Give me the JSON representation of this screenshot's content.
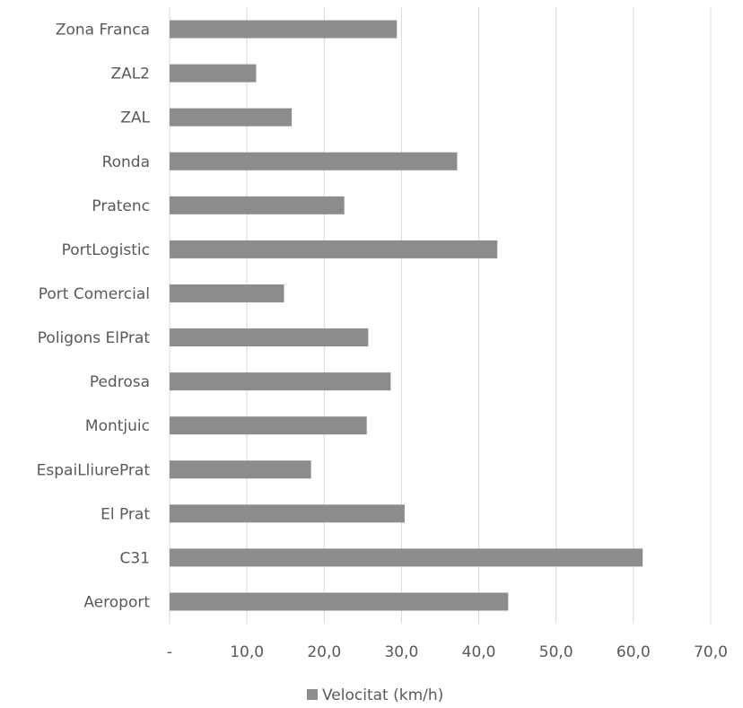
{
  "chart_data": {
    "type": "bar",
    "orientation": "horizontal",
    "categories": [
      "Zona Franca",
      "ZAL2",
      "ZAL",
      "Ronda",
      "Pratenc",
      "PortLogistic",
      "Port Comercial",
      "Poligons ElPrat",
      "Pedrosa",
      "Montjuic",
      "EspaiLliurePrat",
      "El Prat",
      "C31",
      "Aeroport"
    ],
    "series": [
      {
        "name": "Velocitat (km/h)",
        "color": "#8c8c8c",
        "values": [
          29.4,
          11.2,
          15.8,
          37.2,
          22.6,
          42.4,
          14.8,
          25.7,
          28.6,
          25.5,
          18.3,
          30.4,
          61.2,
          43.8
        ]
      }
    ],
    "xlim": [
      0,
      70
    ],
    "xticks": [
      0,
      10,
      20,
      30,
      40,
      50,
      60,
      70
    ],
    "xtick_labels": [
      "-",
      "10,0",
      "20,0",
      "30,0",
      "40,0",
      "50,0",
      "60,0",
      "70,0"
    ],
    "grid": "vertical",
    "legend_position": "bottom",
    "title": "",
    "xlabel": "",
    "ylabel": ""
  }
}
